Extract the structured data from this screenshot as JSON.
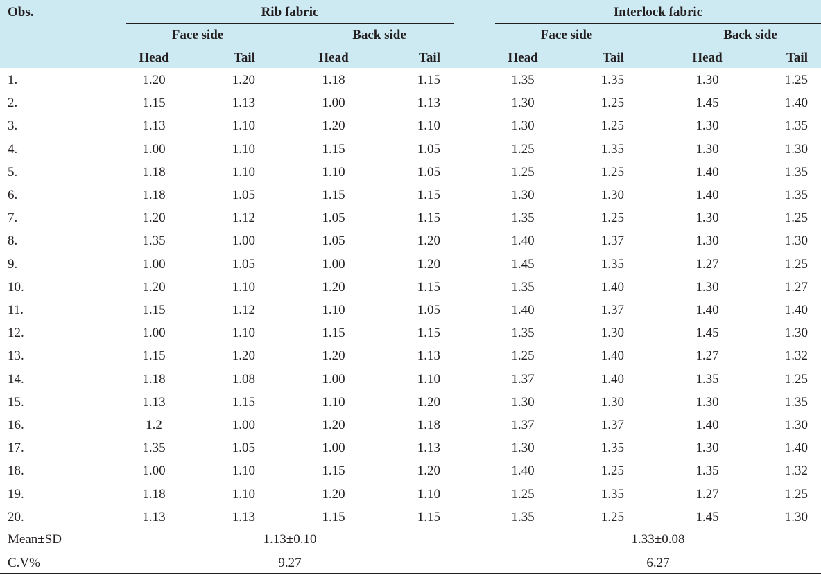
{
  "header": {
    "obs": "Obs.",
    "rib": "Rib fabric",
    "interlock": "Interlock fabric",
    "face": "Face side",
    "back": "Back side",
    "head": "Head",
    "tail": "Tail"
  },
  "rows": [
    [
      "1.",
      "1.20",
      "1.20",
      "1.18",
      "1.15",
      "1.35",
      "1.35",
      "1.30",
      "1.25"
    ],
    [
      "2.",
      "1.15",
      "1.13",
      "1.00",
      "1.13",
      "1.30",
      "1.25",
      "1.45",
      "1.40"
    ],
    [
      "3.",
      "1.13",
      "1.10",
      "1.20",
      "1.10",
      "1.30",
      "1.25",
      "1.30",
      "1.35"
    ],
    [
      "4.",
      "1.00",
      "1.10",
      "1.15",
      "1.05",
      "1.25",
      "1.35",
      "1.30",
      "1.30"
    ],
    [
      "5.",
      "1.18",
      "1.10",
      "1.10",
      "1.05",
      "1.25",
      "1.25",
      "1.40",
      "1.35"
    ],
    [
      "6.",
      "1.18",
      "1.05",
      "1.15",
      "1.15",
      "1.30",
      "1.30",
      "1.40",
      "1.35"
    ],
    [
      "7.",
      "1.20",
      "1.12",
      "1.05",
      "1.15",
      "1.35",
      "1.25",
      "1.30",
      "1.25"
    ],
    [
      "8.",
      "1.35",
      "1.00",
      "1.05",
      "1.20",
      "1.40",
      "1.37",
      "1.30",
      "1.30"
    ],
    [
      "9.",
      "1.00",
      "1.05",
      "1.00",
      "1.20",
      "1.45",
      "1.35",
      "1.27",
      "1.25"
    ],
    [
      "10.",
      "1.20",
      "1.10",
      "1.20",
      "1.15",
      "1.35",
      "1.40",
      "1.30",
      "1.27"
    ],
    [
      "11.",
      "1.15",
      "1.12",
      "1.10",
      "1.05",
      "1.40",
      "1.37",
      "1.40",
      "1.40"
    ],
    [
      "12.",
      "1.00",
      "1.10",
      "1.15",
      "1.15",
      "1.35",
      "1.30",
      "1.45",
      "1.30"
    ],
    [
      "13.",
      "1.15",
      "1.20",
      "1.20",
      "1.13",
      "1.25",
      "1.40",
      "1.27",
      "1.32"
    ],
    [
      "14.",
      "1.18",
      "1.08",
      "1.00",
      "1.10",
      "1.37",
      "1.40",
      "1.35",
      "1.25"
    ],
    [
      "15.",
      "1.13",
      "1.15",
      "1.10",
      "1.20",
      "1.30",
      "1.30",
      "1.30",
      "1.35"
    ],
    [
      "16.",
      "1.2",
      "1.00",
      "1.20",
      "1.18",
      "1.37",
      "1.37",
      "1.40",
      "1.30"
    ],
    [
      "17.",
      "1.35",
      "1.05",
      "1.00",
      "1.13",
      "1.30",
      "1.35",
      "1.30",
      "1.40"
    ],
    [
      "18.",
      "1.00",
      "1.10",
      "1.15",
      "1.20",
      "1.40",
      "1.25",
      "1.35",
      "1.32"
    ],
    [
      "19.",
      "1.18",
      "1.10",
      "1.20",
      "1.10",
      "1.25",
      "1.35",
      "1.27",
      "1.25"
    ],
    [
      "20.",
      "1.13",
      "1.13",
      "1.15",
      "1.15",
      "1.35",
      "1.25",
      "1.45",
      "1.30"
    ]
  ],
  "summary": {
    "mean_label": "Mean±SD",
    "rib_mean": "1.13±0.10",
    "interlock_mean": "1.33±0.08",
    "cv_label": "C.V%",
    "rib_cv": "9.27",
    "interlock_cv": "6.27"
  }
}
